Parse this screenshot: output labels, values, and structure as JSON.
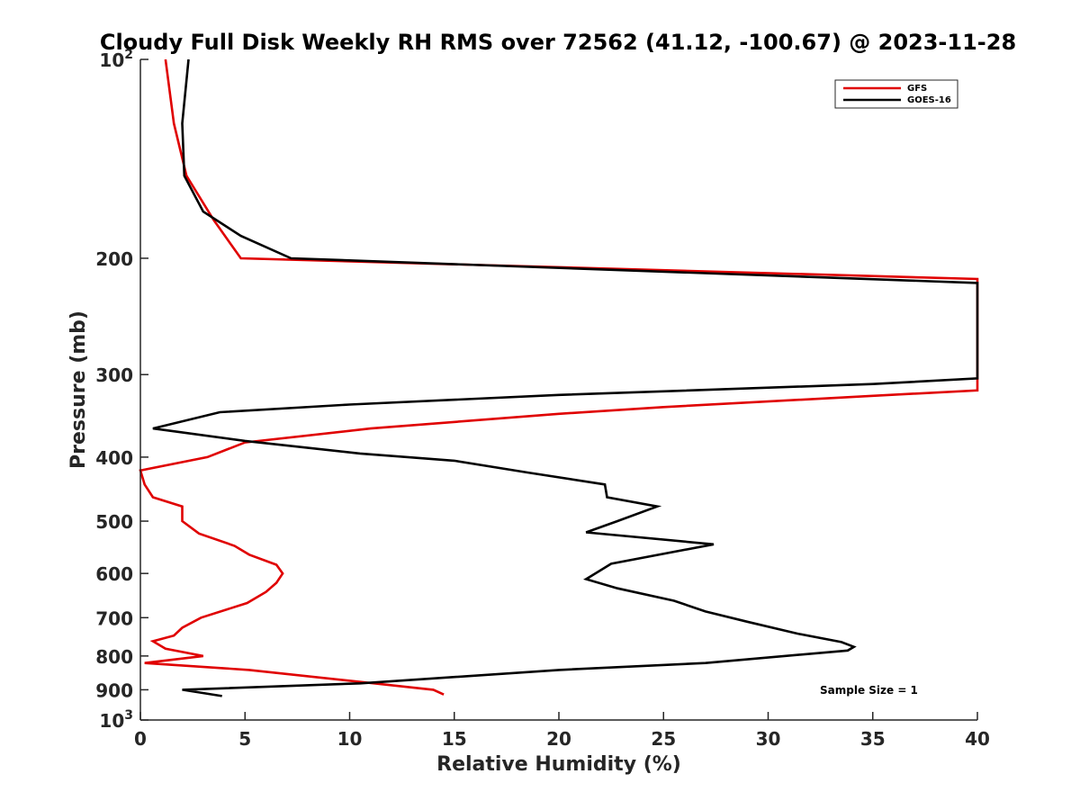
{
  "chart_data": {
    "type": "line",
    "title": "Cloudy Full Disk Weekly RH RMS over 72562 (41.12, -100.67) @ 2023-11-28",
    "xlabel": "Relative Humidity (%)",
    "ylabel": "Pressure (mb)",
    "xlim": [
      0,
      40
    ],
    "ylim": [
      100,
      1000
    ],
    "y_scale": "log",
    "y_reversed": true,
    "grid": false,
    "legend_position": "top-right",
    "x_ticks": [
      0,
      5,
      10,
      15,
      20,
      25,
      30,
      35,
      40
    ],
    "x_tick_labels": [
      "0",
      "5",
      "10",
      "15",
      "20",
      "25",
      "30",
      "35",
      "40"
    ],
    "y_ticks": [
      100,
      200,
      300,
      400,
      500,
      600,
      700,
      800,
      900,
      1000
    ],
    "y_tick_labels": [
      {
        "base": "10",
        "exp": "2"
      },
      {
        "base": "200",
        "exp": ""
      },
      {
        "base": "300",
        "exp": ""
      },
      {
        "base": "400",
        "exp": ""
      },
      {
        "base": "500",
        "exp": ""
      },
      {
        "base": "600",
        "exp": ""
      },
      {
        "base": "700",
        "exp": ""
      },
      {
        "base": "800",
        "exp": ""
      },
      {
        "base": "900",
        "exp": ""
      },
      {
        "base": "10",
        "exp": "3"
      }
    ],
    "annotation": "Sample Size = 1",
    "series": [
      {
        "name": "GFS",
        "color": "#e00000",
        "points": [
          [
            1.2,
            100
          ],
          [
            1.6,
            125
          ],
          [
            2.2,
            150
          ],
          [
            3.5,
            175
          ],
          [
            4.8,
            200
          ],
          [
            40,
            215
          ],
          [
            40,
            317
          ],
          [
            35,
            323
          ],
          [
            25,
            336
          ],
          [
            20,
            344
          ],
          [
            11,
            362
          ],
          [
            5,
            380
          ],
          [
            3.2,
            400
          ],
          [
            0,
            419
          ],
          [
            0.2,
            440
          ],
          [
            0.6,
            460
          ],
          [
            2,
            475
          ],
          [
            2,
            500
          ],
          [
            2.8,
            522
          ],
          [
            4.5,
            545
          ],
          [
            5.2,
            562
          ],
          [
            6.5,
            582
          ],
          [
            6.8,
            600
          ],
          [
            6.5,
            620
          ],
          [
            6.0,
            640
          ],
          [
            5.1,
            665
          ],
          [
            2.9,
            700
          ],
          [
            2.0,
            725
          ],
          [
            1.6,
            745
          ],
          [
            0.6,
            760
          ],
          [
            1.2,
            780
          ],
          [
            3.0,
            800
          ],
          [
            0.2,
            820
          ],
          [
            5.2,
            840
          ],
          [
            14,
            900
          ],
          [
            14.5,
            915
          ]
        ]
      },
      {
        "name": "GOES-16",
        "color": "#000000",
        "points": [
          [
            2.3,
            100
          ],
          [
            2.0,
            125
          ],
          [
            2.1,
            150
          ],
          [
            3.0,
            170
          ],
          [
            4.8,
            185
          ],
          [
            7.2,
            200
          ],
          [
            40,
            218
          ],
          [
            40,
            304
          ],
          [
            35,
            310
          ],
          [
            25,
            318
          ],
          [
            20,
            322
          ],
          [
            10,
            333
          ],
          [
            3.8,
            342
          ],
          [
            0.6,
            362
          ],
          [
            5,
            378
          ],
          [
            10.5,
            395
          ],
          [
            15,
            405
          ],
          [
            18.5,
            422
          ],
          [
            22.2,
            440
          ],
          [
            22.3,
            460
          ],
          [
            24.7,
            475
          ],
          [
            22.8,
            500
          ],
          [
            21.3,
            520
          ],
          [
            27.4,
            542
          ],
          [
            22.5,
            580
          ],
          [
            21.3,
            612
          ],
          [
            22.8,
            632
          ],
          [
            25.5,
            660
          ],
          [
            27.0,
            685
          ],
          [
            29.0,
            710
          ],
          [
            31.4,
            740
          ],
          [
            33.5,
            762
          ],
          [
            34.1,
            775
          ],
          [
            33.8,
            785
          ],
          [
            27.0,
            820
          ],
          [
            20.0,
            840
          ],
          [
            10.5,
            880
          ],
          [
            2.0,
            900
          ],
          [
            3.9,
            920
          ]
        ]
      }
    ]
  }
}
